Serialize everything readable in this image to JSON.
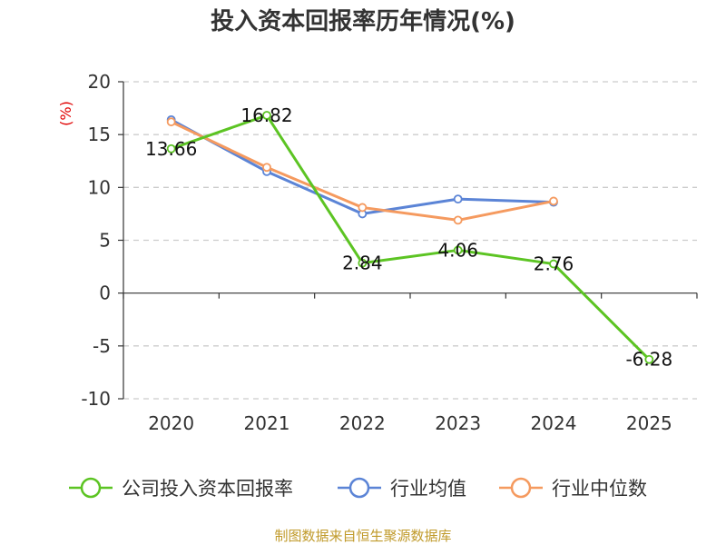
{
  "colors": {
    "company": "#5cc423",
    "industry_avg": "#5b84d6",
    "industry_median": "#f59a5f",
    "grid": "#cccccc",
    "axis": "#333333"
  },
  "chart_data": {
    "type": "line",
    "title": "投入资本回报率历年情况(%)",
    "ylabel": "(%)",
    "xlabel": "",
    "categories": [
      "2020",
      "2021",
      "2022",
      "2023",
      "2024",
      "2025"
    ],
    "ylim": [
      -10,
      20
    ],
    "yticks": [
      20,
      15,
      10,
      5,
      0,
      -5,
      -10
    ],
    "grid": true,
    "legend_position": "bottom",
    "series": [
      {
        "key": "company",
        "name": "公司投入资本回报率",
        "values": [
          13.66,
          16.82,
          2.84,
          4.06,
          2.76,
          -6.28
        ],
        "labels": [
          "13.66",
          "16.82",
          "2.84",
          "4.06",
          "2.76",
          "-6.28"
        ]
      },
      {
        "key": "industry_avg",
        "name": "行业均值",
        "values": [
          16.4,
          11.5,
          7.5,
          8.9,
          8.6,
          null
        ]
      },
      {
        "key": "industry_median",
        "name": "行业中位数",
        "values": [
          16.2,
          11.9,
          8.1,
          6.9,
          8.7,
          null
        ]
      }
    ]
  },
  "footer": {
    "source": "制图数据来自恒生聚源数据库"
  }
}
